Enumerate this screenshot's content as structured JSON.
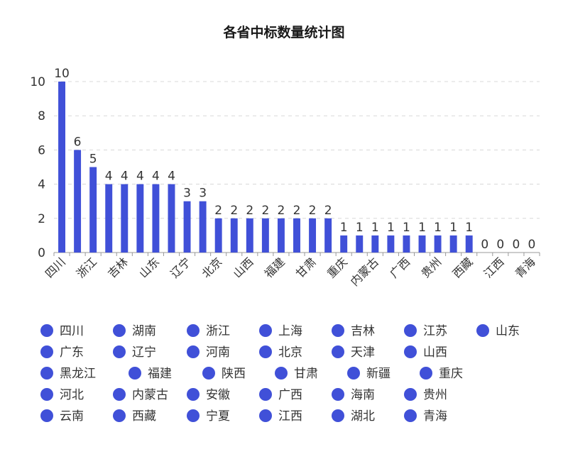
{
  "chart_data": {
    "type": "bar",
    "title": "各省中标数量统计图",
    "color": "#4050d8",
    "categories": [
      "四川",
      "湖南",
      "浙江",
      "上海",
      "吉林",
      "江苏",
      "山东",
      "广东",
      "辽宁",
      "河南",
      "北京",
      "天津",
      "山西",
      "黑龙江",
      "福建",
      "陕西",
      "甘肃",
      "新疆",
      "重庆",
      "河北",
      "内蒙古",
      "安徽",
      "广西",
      "海南",
      "贵州",
      "云南",
      "西藏",
      "宁夏",
      "江西",
      "湖北",
      "青海"
    ],
    "values": [
      10,
      6,
      5,
      4,
      4,
      4,
      4,
      4,
      3,
      3,
      2,
      2,
      2,
      2,
      2,
      2,
      2,
      2,
      1,
      1,
      1,
      1,
      1,
      1,
      1,
      1,
      1,
      0,
      0,
      0,
      0
    ],
    "visible_tick_labels": [
      "四川",
      "浙江",
      "吉林",
      "山东",
      "辽宁",
      "北京",
      "山西",
      "福建",
      "甘肃",
      "重庆",
      "内蒙古",
      "广西",
      "贵州",
      "西藏",
      "江西",
      "青海"
    ],
    "ylim": [
      0,
      10
    ],
    "yticks": [
      0,
      2,
      4,
      6,
      8,
      10
    ],
    "grid": true,
    "legend": "bottom",
    "xlabel": "",
    "ylabel": ""
  }
}
